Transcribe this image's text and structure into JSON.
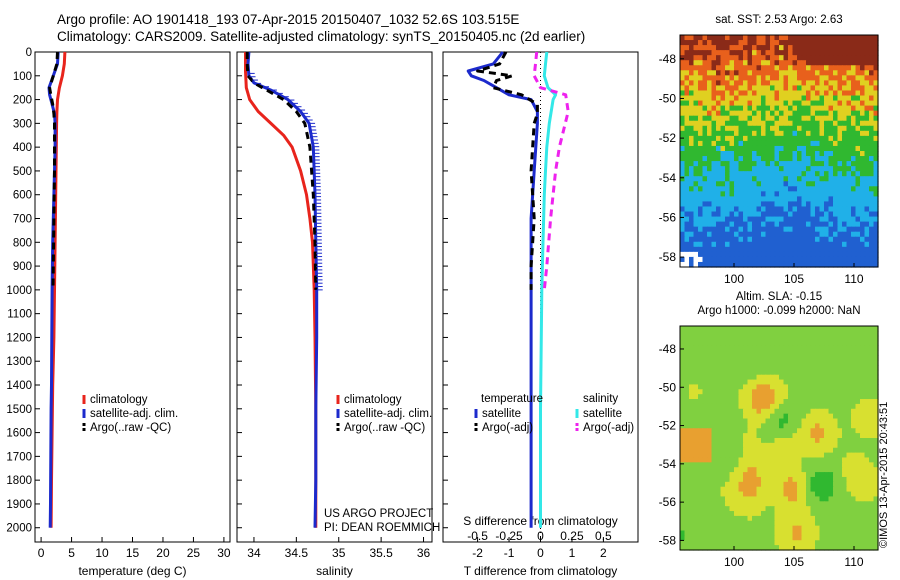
{
  "header": {
    "line1": "Argo profile: AO 1901418_193 07-Apr-2015 20150407_1032 52.6S 103.515E",
    "line2": "Climatology: CARS2009. Satellite-adjusted climatology: synTS_20150405.nc (2d earlier)"
  },
  "colors": {
    "climatology": "#e8241c",
    "satellite": "#1c2acc",
    "argo": "#000000",
    "salinity_sat": "#33e8e8",
    "salinity_argo": "#ee22ee"
  },
  "chart_data": [
    {
      "type": "line",
      "panel": "temperature",
      "xlabel": "temperature (deg C)",
      "xlim": [
        -1,
        31
      ],
      "xticks": [
        0,
        5,
        10,
        15,
        20,
        25,
        30
      ],
      "ylim": [
        2060,
        0
      ],
      "yticks": [
        0,
        100,
        200,
        300,
        400,
        500,
        600,
        700,
        800,
        900,
        1000,
        1100,
        1200,
        1300,
        1400,
        1500,
        1600,
        1700,
        1800,
        1900,
        2000
      ],
      "legend": [
        "climatology",
        "satellite-adj. clim.",
        "Argo(..raw -QC)"
      ],
      "series": [
        {
          "name": "climatology",
          "color": "#e8241c",
          "x": [
            3.9,
            3.8,
            3.5,
            3.0,
            2.7,
            2.6,
            2.55,
            2.5,
            2.45,
            2.4,
            2.3,
            2.2,
            2.1,
            2.0,
            1.9,
            1.85,
            1.8,
            1.7,
            1.65
          ],
          "y": [
            0,
            50,
            100,
            150,
            200,
            250,
            300,
            400,
            500,
            600,
            800,
            1000,
            1200,
            1300,
            1400,
            1500,
            1600,
            1800,
            2000
          ]
        },
        {
          "name": "satellite-adj. clim.",
          "color": "#1c2acc",
          "x": [
            2.8,
            2.7,
            2.0,
            1.3,
            1.4,
            1.8,
            2.2,
            2.3,
            2.3,
            2.2,
            2.1,
            2.0,
            1.9,
            1.85,
            1.8,
            1.75,
            1.7,
            1.65,
            1.6,
            1.55,
            1.5
          ],
          "y": [
            0,
            50,
            100,
            150,
            180,
            220,
            260,
            300,
            400,
            500,
            600,
            700,
            800,
            900,
            1000,
            1200,
            1400,
            1500,
            1700,
            1900,
            2000
          ]
        },
        {
          "name": "Argo(..raw -QC)",
          "color": "#000000",
          "x": [
            2.7,
            2.6,
            2.0,
            1.4,
            1.6,
            1.9,
            2.1,
            2.2,
            2.2,
            2.1,
            2.0,
            1.95
          ],
          "y": [
            0,
            50,
            100,
            150,
            180,
            220,
            260,
            300,
            500,
            700,
            900,
            1000
          ]
        }
      ]
    },
    {
      "type": "line",
      "panel": "salinity",
      "xlabel": "salinity",
      "xlim": [
        33.8,
        36.1
      ],
      "xticks": [
        34,
        34.5,
        35,
        35.5,
        36
      ],
      "xticklabels": [
        "34",
        "34.5",
        "35",
        "35.5",
        "36"
      ],
      "ylim": [
        2060,
        0
      ],
      "legend": [
        "climatology",
        "satellite-adj. clim.",
        "Argo(..raw -QC)"
      ],
      "series": [
        {
          "name": "climatology",
          "color": "#e8241c",
          "x": [
            33.9,
            33.9,
            33.91,
            33.95,
            34.05,
            34.2,
            34.35,
            34.45,
            34.55,
            34.62,
            34.66,
            34.69,
            34.71,
            34.72,
            34.73,
            34.73
          ],
          "y": [
            0,
            80,
            150,
            200,
            250,
            300,
            350,
            400,
            500,
            600,
            700,
            800,
            1000,
            1200,
            1500,
            2000
          ]
        },
        {
          "name": "satellite-adj. clim.",
          "color": "#1c2acc",
          "x": [
            33.94,
            33.93,
            33.94,
            34.0,
            34.2,
            34.4,
            34.55,
            34.65,
            34.7,
            34.72,
            34.73,
            34.74,
            34.74,
            34.73,
            34.73,
            34.72
          ],
          "y": [
            0,
            50,
            100,
            130,
            160,
            200,
            250,
            300,
            400,
            600,
            800,
            1000,
            1200,
            1500,
            1800,
            2000
          ]
        },
        {
          "name": "Argo(..raw -QC)",
          "color": "#000000",
          "x": [
            33.92,
            33.92,
            33.93,
            34.0,
            34.15,
            34.35,
            34.5,
            34.6,
            34.66,
            34.7,
            34.72,
            34.73
          ],
          "y": [
            0,
            50,
            100,
            130,
            160,
            200,
            250,
            300,
            400,
            600,
            800,
            1000
          ]
        }
      ]
    },
    {
      "type": "line",
      "panel": "differences",
      "xlabel": "T difference from climatology",
      "xlabel_top": "S difference from climatology",
      "xlim": [
        -3.1,
        3.1
      ],
      "xticks": [
        -2,
        -1,
        0,
        1,
        2
      ],
      "xlim_top": [
        -0.775,
        0.775
      ],
      "xticks_top": [
        -0.5,
        -0.25,
        0,
        0.25,
        0.5
      ],
      "xticklabels_top": [
        "-0.5",
        "-0.25",
        "0",
        "0.25",
        "0.5"
      ],
      "ylim": [
        2060,
        0
      ],
      "legend_groups": [
        {
          "title": "temperature",
          "items": [
            "satellite",
            "Argo(-adj)"
          ]
        },
        {
          "title": "salinity",
          "items": [
            "satellite",
            "Argo(-adj)"
          ]
        }
      ],
      "series": [
        {
          "name": "temperature satellite",
          "color": "#1c2acc",
          "x": [
            -1.2,
            -1.5,
            -2.3,
            -2.2,
            -1.8,
            -1.4,
            -1.0,
            -0.3,
            -0.1,
            -0.1,
            -0.2,
            -0.3,
            -0.3,
            -0.3,
            -0.3,
            -0.3,
            -0.3
          ],
          "y": [
            0,
            50,
            80,
            100,
            120,
            150,
            180,
            200,
            250,
            300,
            500,
            700,
            900,
            1000,
            1200,
            1500,
            2000
          ]
        },
        {
          "name": "temperature Argo(-adj)",
          "color": "#000000",
          "x": [
            -1.1,
            -1.3,
            -2.0,
            -0.9,
            -1.4,
            -1.5,
            -0.6,
            -0.1,
            -0.1,
            -0.2,
            -0.3,
            -0.2,
            -0.3,
            -0.3
          ],
          "y": [
            0,
            50,
            80,
            100,
            120,
            150,
            180,
            220,
            260,
            300,
            500,
            700,
            900,
            1000
          ]
        },
        {
          "name": "salinity satellite",
          "color": "#33e8e8",
          "x": [
            0.05,
            0.04,
            0.03,
            0.06,
            0.12,
            0.1,
            0.07,
            0.05,
            0.04,
            0.03,
            0.02,
            0.01,
            0.0,
            0.0
          ],
          "y": [
            0,
            50,
            100,
            150,
            180,
            200,
            300,
            400,
            500,
            600,
            800,
            1000,
            1500,
            2000
          ]
        },
        {
          "name": "salinity Argo(-adj)",
          "color": "#ee22ee",
          "x": [
            -0.03,
            -0.04,
            -0.05,
            0.0,
            0.2,
            0.22,
            0.15,
            0.12,
            0.08,
            0.05,
            0.03
          ],
          "y": [
            0,
            50,
            100,
            150,
            180,
            250,
            400,
            500,
            700,
            900,
            1000
          ]
        }
      ],
      "zero_line": true
    },
    {
      "type": "heatmap",
      "panel": "sst-map",
      "title": "sat. SST: 2.53 Argo: 2.63",
      "xlim": [
        95.5,
        112
      ],
      "ylim": [
        -58.5,
        -46.8
      ],
      "xticks": [
        100,
        105,
        110
      ],
      "yticks": [
        -48,
        -50,
        -52,
        -54,
        -56,
        -58
      ],
      "colors": [
        "#8a2a18",
        "#e8601c",
        "#e0d020",
        "#30b830",
        "#20b0e8",
        "#2060d0"
      ],
      "description_values": {
        "north": "warm",
        "south": "cold"
      }
    },
    {
      "type": "heatmap",
      "panel": "sla-map",
      "title_line1": "Altim. SLA: -0.15",
      "title_line2": "Argo h1000: -0.099 h2000: NaN",
      "xlim": [
        95.5,
        112
      ],
      "ylim": [
        -58.5,
        -46.8
      ],
      "xticks": [
        100,
        105,
        110
      ],
      "yticks": [
        -48,
        -50,
        -52,
        -54,
        -56,
        -58
      ],
      "colors": [
        "#e8a030",
        "#d8e030",
        "#80d040",
        "#30b830"
      ]
    }
  ],
  "panel_text": {
    "project_line1": "US ARGO PROJECT",
    "project_line2": "PI: DEAN ROEMMICH"
  },
  "credit": "©IMOS 13-Apr-2015 20:43:51"
}
